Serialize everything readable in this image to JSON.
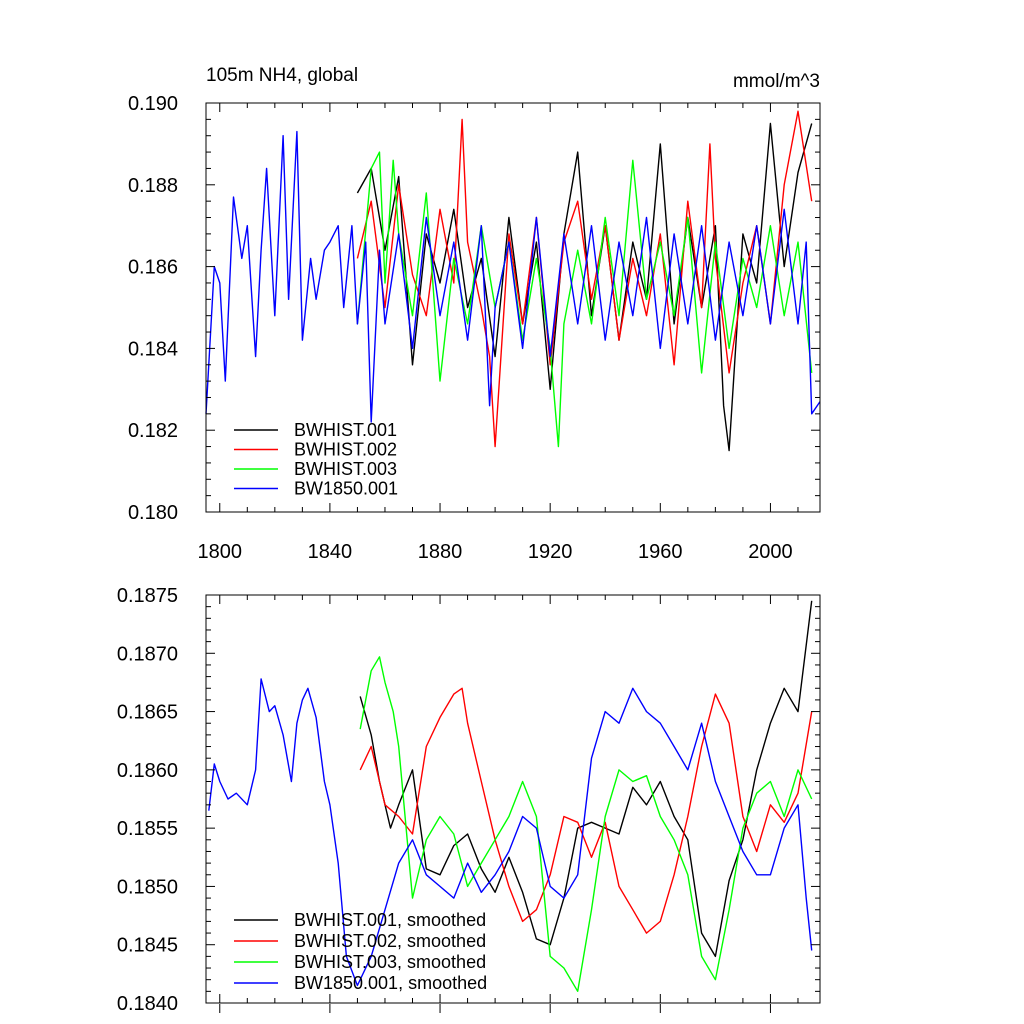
{
  "chart_data": [
    {
      "type": "line",
      "title_left": "105m NH4, global",
      "title_right": "mmol/m^3",
      "xlim": [
        1795,
        2018
      ],
      "ylim": [
        0.18,
        0.19
      ],
      "xticks": [
        1800,
        1840,
        1880,
        1920,
        1960,
        2000
      ],
      "yticks": [
        0.18,
        0.182,
        0.184,
        0.186,
        0.188,
        0.19
      ],
      "ytick_labels": [
        "0.180",
        "0.182",
        "0.184",
        "0.186",
        "0.188",
        "0.190"
      ],
      "show_x_tick_labels": true,
      "legend_position": "lower-left",
      "series": [
        {
          "name": "BWHIST.001",
          "color": "#000000",
          "x": [
            1850,
            1855,
            1860,
            1865,
            1870,
            1875,
            1880,
            1885,
            1890,
            1895,
            1900,
            1905,
            1910,
            1915,
            1920,
            1925,
            1930,
            1935,
            1940,
            1945,
            1950,
            1955,
            1960,
            1965,
            1970,
            1975,
            1980,
            1983,
            1985,
            1990,
            1995,
            2000,
            2005,
            2010,
            2015
          ],
          "values": [
            0.1878,
            0.1884,
            0.1864,
            0.1882,
            0.1836,
            0.1868,
            0.1856,
            0.1874,
            0.185,
            0.1862,
            0.1838,
            0.1872,
            0.1846,
            0.1866,
            0.183,
            0.1868,
            0.1888,
            0.1848,
            0.187,
            0.1842,
            0.1866,
            0.1852,
            0.189,
            0.1846,
            0.1872,
            0.185,
            0.187,
            0.1826,
            0.1815,
            0.1868,
            0.1856,
            0.1895,
            0.186,
            0.1883,
            0.1895
          ]
        },
        {
          "name": "BWHIST.002",
          "color": "#ff0000",
          "x": [
            1850,
            1855,
            1860,
            1865,
            1870,
            1875,
            1880,
            1885,
            1888,
            1890,
            1895,
            1898,
            1900,
            1905,
            1910,
            1915,
            1920,
            1925,
            1930,
            1935,
            1940,
            1945,
            1950,
            1955,
            1960,
            1965,
            1970,
            1975,
            1978,
            1980,
            1985,
            1990,
            1995,
            2000,
            2005,
            2010,
            2015
          ],
          "values": [
            0.1862,
            0.1876,
            0.185,
            0.188,
            0.1858,
            0.1848,
            0.1874,
            0.1856,
            0.1896,
            0.1866,
            0.185,
            0.1838,
            0.1816,
            0.1868,
            0.1846,
            0.1872,
            0.1836,
            0.1866,
            0.1876,
            0.1852,
            0.187,
            0.1842,
            0.1862,
            0.1848,
            0.1868,
            0.1836,
            0.1876,
            0.185,
            0.189,
            0.1862,
            0.1834,
            0.1856,
            0.187,
            0.1846,
            0.188,
            0.1898,
            0.1876
          ]
        },
        {
          "name": "BWHIST.003",
          "color": "#00ff00",
          "x": [
            1850,
            1855,
            1858,
            1860,
            1863,
            1865,
            1870,
            1875,
            1880,
            1885,
            1890,
            1895,
            1900,
            1905,
            1910,
            1915,
            1920,
            1923,
            1925,
            1930,
            1935,
            1940,
            1945,
            1950,
            1955,
            1960,
            1965,
            1970,
            1975,
            1980,
            1985,
            1990,
            1995,
            2000,
            2005,
            2010,
            2015
          ],
          "values": [
            0.1846,
            0.1884,
            0.1888,
            0.1856,
            0.1886,
            0.1868,
            0.1848,
            0.1878,
            0.1832,
            0.1862,
            0.1846,
            0.187,
            0.185,
            0.1866,
            0.1842,
            0.1862,
            0.184,
            0.1816,
            0.1846,
            0.1864,
            0.1846,
            0.1872,
            0.1848,
            0.1886,
            0.1852,
            0.1866,
            0.1848,
            0.1872,
            0.1834,
            0.1866,
            0.184,
            0.1862,
            0.185,
            0.187,
            0.1848,
            0.1866,
            0.1834
          ]
        },
        {
          "name": "BW1850.001",
          "color": "#0000ff",
          "x": [
            1795,
            1798,
            1800,
            1802,
            1805,
            1808,
            1810,
            1813,
            1815,
            1817,
            1820,
            1823,
            1825,
            1828,
            1830,
            1833,
            1835,
            1838,
            1840,
            1843,
            1845,
            1848,
            1850,
            1853,
            1855,
            1858,
            1860,
            1865,
            1870,
            1875,
            1880,
            1885,
            1890,
            1895,
            1898,
            1900,
            1905,
            1910,
            1915,
            1920,
            1925,
            1930,
            1935,
            1940,
            1945,
            1950,
            1955,
            1960,
            1965,
            1970,
            1975,
            1980,
            1985,
            1990,
            1995,
            2000,
            2005,
            2010,
            2013,
            2015,
            2018
          ],
          "values": [
            0.1824,
            0.186,
            0.1856,
            0.1832,
            0.1877,
            0.1862,
            0.187,
            0.1838,
            0.1864,
            0.1884,
            0.1848,
            0.1892,
            0.1852,
            0.1893,
            0.1842,
            0.1862,
            0.1852,
            0.1864,
            0.1866,
            0.187,
            0.185,
            0.187,
            0.1846,
            0.1866,
            0.1822,
            0.1864,
            0.1846,
            0.1868,
            0.184,
            0.1872,
            0.1848,
            0.1866,
            0.1842,
            0.187,
            0.1826,
            0.185,
            0.1866,
            0.184,
            0.1872,
            0.1838,
            0.1868,
            0.1846,
            0.187,
            0.1842,
            0.1866,
            0.1848,
            0.1872,
            0.184,
            0.1868,
            0.1846,
            0.187,
            0.1842,
            0.1866,
            0.1848,
            0.187,
            0.1846,
            0.1874,
            0.1846,
            0.1866,
            0.1824,
            0.1827
          ]
        }
      ]
    },
    {
      "type": "line",
      "xlim": [
        1795,
        2018
      ],
      "ylim": [
        0.184,
        0.1875
      ],
      "xticks": [
        1800,
        1840,
        1880,
        1920,
        1960,
        2000
      ],
      "yticks": [
        0.184,
        0.1845,
        0.185,
        0.1855,
        0.186,
        0.1865,
        0.187,
        0.1875
      ],
      "ytick_labels": [
        "0.1840",
        "0.1845",
        "0.1850",
        "0.1855",
        "0.1860",
        "0.1865",
        "0.1870",
        "0.1875"
      ],
      "show_x_tick_labels": false,
      "legend_position": "lower-left",
      "series": [
        {
          "name": "BWHIST.001, smoothed",
          "color": "#000000",
          "x": [
            1851,
            1855,
            1858,
            1862,
            1865,
            1870,
            1875,
            1880,
            1885,
            1890,
            1895,
            1900,
            1905,
            1910,
            1915,
            1920,
            1925,
            1930,
            1935,
            1940,
            1945,
            1950,
            1955,
            1960,
            1965,
            1970,
            1975,
            1980,
            1985,
            1990,
            1995,
            2000,
            2005,
            2010,
            2015
          ],
          "values": [
            0.18663,
            0.1863,
            0.1859,
            0.1855,
            0.1857,
            0.186,
            0.18515,
            0.1851,
            0.18535,
            0.18545,
            0.18515,
            0.18495,
            0.18525,
            0.18495,
            0.18455,
            0.1845,
            0.1849,
            0.1855,
            0.18555,
            0.1855,
            0.18545,
            0.18585,
            0.1857,
            0.1859,
            0.1856,
            0.1854,
            0.1846,
            0.1844,
            0.18505,
            0.1854,
            0.186,
            0.1864,
            0.1867,
            0.1865,
            0.18745
          ]
        },
        {
          "name": "BWHIST.002, smoothed",
          "color": "#ff0000",
          "x": [
            1851,
            1855,
            1860,
            1865,
            1870,
            1875,
            1880,
            1885,
            1888,
            1890,
            1895,
            1900,
            1905,
            1910,
            1915,
            1920,
            1925,
            1930,
            1935,
            1940,
            1945,
            1950,
            1955,
            1960,
            1965,
            1970,
            1975,
            1980,
            1985,
            1990,
            1995,
            2000,
            2005,
            2010,
            2015
          ],
          "values": [
            0.186,
            0.1862,
            0.1857,
            0.1856,
            0.18545,
            0.1862,
            0.18645,
            0.18665,
            0.1867,
            0.1864,
            0.1859,
            0.1854,
            0.185,
            0.1847,
            0.1848,
            0.1851,
            0.1856,
            0.18555,
            0.18525,
            0.18555,
            0.185,
            0.1848,
            0.1846,
            0.1847,
            0.1851,
            0.1856,
            0.1862,
            0.18665,
            0.1864,
            0.1856,
            0.1853,
            0.1857,
            0.18555,
            0.1858,
            0.1865
          ]
        },
        {
          "name": "BWHIST.003, smoothed",
          "color": "#00ff00",
          "x": [
            1851,
            1855,
            1858,
            1860,
            1863,
            1865,
            1870,
            1875,
            1880,
            1885,
            1890,
            1895,
            1900,
            1905,
            1910,
            1915,
            1920,
            1925,
            1930,
            1935,
            1940,
            1945,
            1950,
            1955,
            1960,
            1965,
            1970,
            1975,
            1980,
            1985,
            1990,
            1995,
            2000,
            2005,
            2010,
            2015
          ],
          "values": [
            0.18635,
            0.18685,
            0.18697,
            0.18675,
            0.1865,
            0.1862,
            0.1849,
            0.1854,
            0.1856,
            0.18545,
            0.185,
            0.1852,
            0.1854,
            0.1856,
            0.1859,
            0.1856,
            0.1844,
            0.1843,
            0.1841,
            0.1848,
            0.1856,
            0.186,
            0.1859,
            0.18595,
            0.1856,
            0.1854,
            0.1851,
            0.1844,
            0.1842,
            0.1848,
            0.1855,
            0.1858,
            0.1859,
            0.1856,
            0.186,
            0.18575
          ]
        },
        {
          "name": "BW1850.001, smoothed",
          "color": "#0000ff",
          "x": [
            1796,
            1798,
            1800,
            1803,
            1806,
            1810,
            1813,
            1815,
            1818,
            1820,
            1823,
            1826,
            1828,
            1830,
            1832,
            1835,
            1838,
            1840,
            1843,
            1846,
            1850,
            1855,
            1860,
            1865,
            1870,
            1875,
            1880,
            1885,
            1890,
            1895,
            1900,
            1905,
            1910,
            1915,
            1920,
            1925,
            1930,
            1935,
            1940,
            1945,
            1950,
            1955,
            1960,
            1965,
            1970,
            1975,
            1980,
            1985,
            1990,
            1995,
            2000,
            2005,
            2010,
            2013,
            2015
          ],
          "values": [
            0.18565,
            0.18605,
            0.1859,
            0.18575,
            0.1858,
            0.1857,
            0.186,
            0.18678,
            0.1865,
            0.18655,
            0.1863,
            0.1859,
            0.1864,
            0.1866,
            0.1867,
            0.18645,
            0.1859,
            0.1857,
            0.1852,
            0.1844,
            0.18415,
            0.1844,
            0.1848,
            0.1852,
            0.1854,
            0.1851,
            0.185,
            0.1849,
            0.1852,
            0.18495,
            0.1851,
            0.1853,
            0.1856,
            0.1855,
            0.185,
            0.1849,
            0.1851,
            0.1861,
            0.1865,
            0.1864,
            0.1867,
            0.1865,
            0.1864,
            0.1862,
            0.186,
            0.1864,
            0.1859,
            0.1856,
            0.1853,
            0.1851,
            0.1851,
            0.1855,
            0.1857,
            0.1849,
            0.18445
          ]
        }
      ]
    }
  ]
}
